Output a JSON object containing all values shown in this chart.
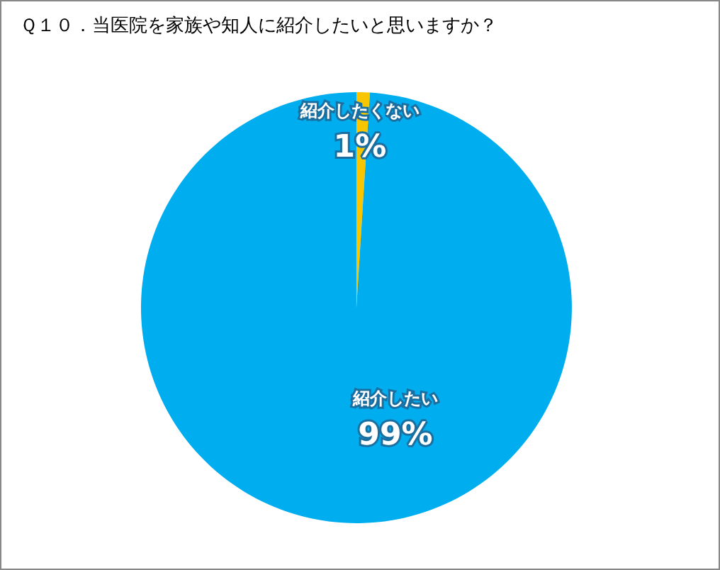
{
  "chart_data": {
    "type": "pie",
    "title": "Ｑ１０．当医院を家族や知人に紹介したいと思いますか？",
    "categories": [
      "紹介したくない",
      "紹介したい"
    ],
    "values": [
      1,
      99
    ],
    "colors": [
      "#f7c600",
      "#00aeef"
    ],
    "value_labels": [
      "1%",
      "99%"
    ],
    "legend": false
  }
}
